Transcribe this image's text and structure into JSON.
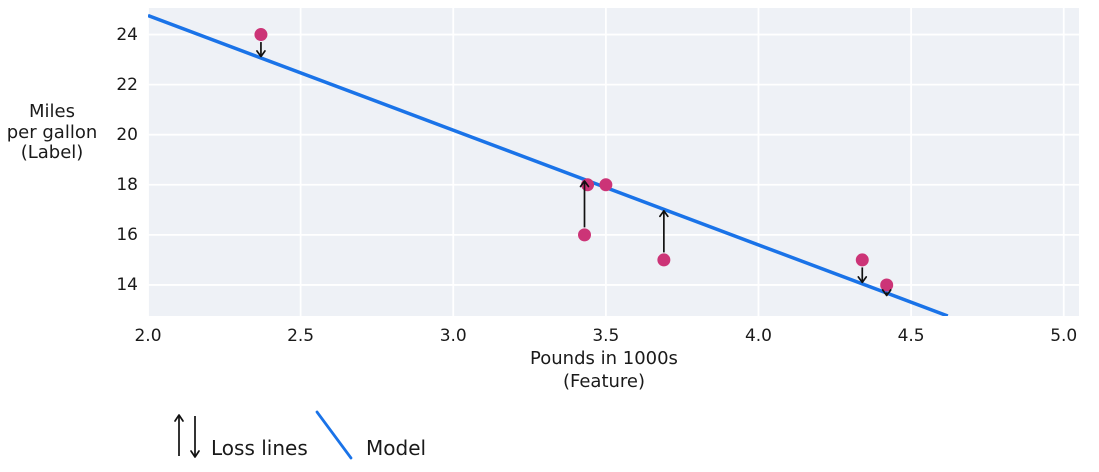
{
  "figure": {
    "y_axis_label_lines": [
      "Miles",
      "per gallon",
      "(Label)"
    ],
    "x_axis_label_lines": [
      "Pounds in 1000s",
      "(Feature)"
    ]
  },
  "legend": {
    "loss_label": "Loss lines",
    "model_label": "Model"
  },
  "chart_data": {
    "type": "scatter",
    "title": "",
    "xlabel": "Pounds in 1000s (Feature)",
    "ylabel": "Miles per gallon (Label)",
    "xlim": [
      2.0,
      5.05
    ],
    "ylim": [
      12.76,
      25.06
    ],
    "x_ticks": [
      {
        "v": 2.0,
        "label": "2.0"
      },
      {
        "v": 2.5,
        "label": "2.5"
      },
      {
        "v": 3.0,
        "label": "3.0"
      },
      {
        "v": 3.5,
        "label": "3.5"
      },
      {
        "v": 4.0,
        "label": "4.0"
      },
      {
        "v": 4.5,
        "label": "4.5"
      },
      {
        "v": 5.0,
        "label": "5.0"
      }
    ],
    "y_ticks": [
      {
        "v": 14,
        "label": "14"
      },
      {
        "v": 16,
        "label": "16"
      },
      {
        "v": 18,
        "label": "18"
      },
      {
        "v": 20,
        "label": "20"
      },
      {
        "v": 22,
        "label": "22"
      },
      {
        "v": 24,
        "label": "24"
      }
    ],
    "grid": true,
    "legend_position": "bottom-left",
    "points": [
      {
        "x": 2.37,
        "y": 24
      },
      {
        "x": 3.43,
        "y": 16
      },
      {
        "x": 3.44,
        "y": 18
      },
      {
        "x": 3.5,
        "y": 18
      },
      {
        "x": 3.69,
        "y": 15
      },
      {
        "x": 4.34,
        "y": 15
      },
      {
        "x": 4.42,
        "y": 14
      }
    ],
    "model": {
      "slope": -4.58,
      "intercept": 33.92
    },
    "loss_arrow_threshold": 0.3,
    "colors": {
      "plot_bg": "#eef1f6",
      "grid": "#ffffff",
      "model_line": "#1a73e8",
      "point": "#cc3477",
      "arrow": "#111111",
      "text": "#1a1a1a"
    }
  }
}
